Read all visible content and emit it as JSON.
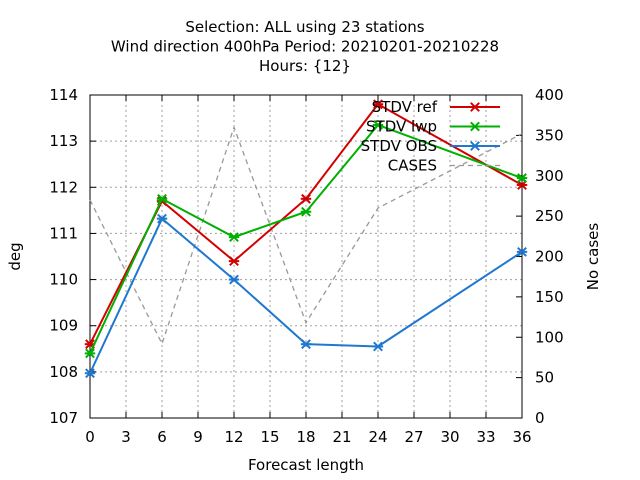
{
  "chart_data": {
    "type": "line",
    "title_lines": [
      "Selection: ALL using    23 stations",
      "Wind direction 400hPa   Period: 20210201-20210228",
      "Hours: {12}"
    ],
    "xlabel": "Forecast length",
    "ylabel": "deg",
    "y2label": "No cases",
    "x_ticks": [
      0,
      3,
      6,
      9,
      12,
      15,
      18,
      21,
      24,
      27,
      30,
      33,
      36
    ],
    "xlim": [
      0,
      36
    ],
    "ylim": [
      107,
      114
    ],
    "y_ticks": [
      107,
      108,
      109,
      110,
      111,
      112,
      113,
      114
    ],
    "y2lim": [
      0,
      400
    ],
    "y2_ticks": [
      0,
      50,
      100,
      150,
      200,
      250,
      300,
      350,
      400
    ],
    "grid": true,
    "legend_position": "top-right",
    "x": [
      0,
      6,
      12,
      18,
      24,
      36
    ],
    "series": [
      {
        "name": "STDV ref",
        "color": "#d40000",
        "axis": "y1",
        "marker": "x",
        "values": [
          108.6,
          111.7,
          110.4,
          111.75,
          113.8,
          112.05
        ]
      },
      {
        "name": "STDV lwp",
        "color": "#00b000",
        "axis": "y1",
        "marker": "x",
        "values": [
          108.4,
          111.75,
          110.92,
          111.47,
          113.35,
          112.2
        ]
      },
      {
        "name": "STDV OBS",
        "color": "#1f78d0",
        "axis": "y1",
        "marker": "x",
        "values": [
          107.97,
          111.32,
          110.0,
          108.6,
          108.55,
          110.6
        ]
      },
      {
        "name": "CASES",
        "color": "#999999",
        "axis": "y2",
        "marker": "none",
        "dashed": true,
        "values": [
          270,
          92,
          360,
          118,
          260,
          352
        ]
      }
    ]
  }
}
